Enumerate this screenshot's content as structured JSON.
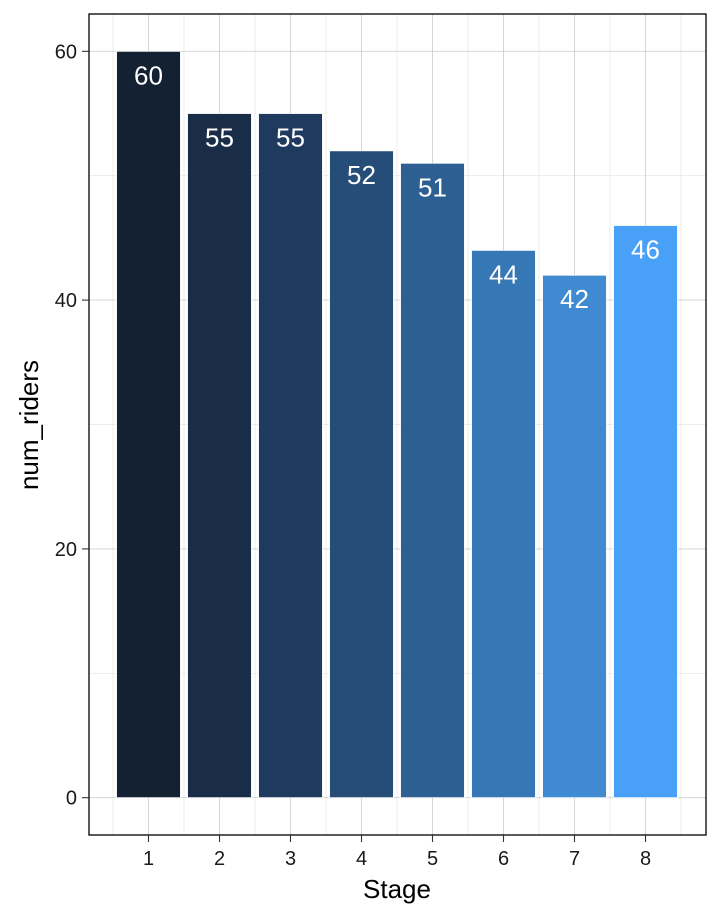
{
  "chart_data": {
    "type": "bar",
    "categories": [
      "1",
      "2",
      "3",
      "4",
      "5",
      "6",
      "7",
      "8"
    ],
    "values": [
      60,
      55,
      55,
      52,
      51,
      44,
      42,
      46
    ],
    "xlabel": "Stage",
    "ylabel": "num_riders",
    "ylim": [
      -3,
      63
    ],
    "yticks": [
      0,
      20,
      40,
      60
    ],
    "grid": true,
    "bar_colors": [
      "#132132",
      "#192d49",
      "#1f3a5f",
      "#264d78",
      "#2d5f93",
      "#3677b6",
      "#3f8ad1",
      "#48a1f7"
    ],
    "data_labels": true
  }
}
